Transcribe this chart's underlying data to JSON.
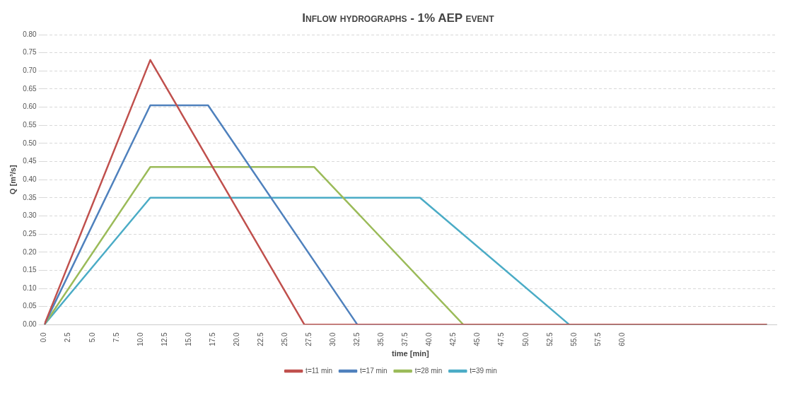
{
  "chart_data": {
    "type": "line",
    "title": "Inflow hydrographs - 1% AEP event",
    "xlabel": "time [min]",
    "ylabel": "Q [m³/s]",
    "series": [
      {
        "name": "t=11 min",
        "color": "#c0504d",
        "x": [
          0,
          11,
          27,
          75
        ],
        "values": [
          0,
          0.73,
          0,
          0
        ]
      },
      {
        "name": "t=17 min",
        "color": "#4f81bd",
        "x": [
          0,
          11,
          17,
          32.5,
          75
        ],
        "values": [
          0,
          0.605,
          0.605,
          0,
          0
        ]
      },
      {
        "name": "t=28 min",
        "color": "#9bbb59",
        "x": [
          0,
          11,
          28,
          43.5,
          75
        ],
        "values": [
          0,
          0.435,
          0.435,
          0,
          0
        ]
      },
      {
        "name": "t=39 min",
        "color": "#4bacc6",
        "x": [
          0,
          11,
          39,
          54.5,
          75
        ],
        "values": [
          0,
          0.35,
          0.35,
          0,
          0
        ]
      }
    ],
    "xlim": [
      0,
      76
    ],
    "xticks": [
      {
        "value": 0,
        "label": "0.0"
      },
      {
        "value": 2.5,
        "label": "2.5"
      },
      {
        "value": 5,
        "label": "5.0"
      },
      {
        "value": 7.5,
        "label": "7.5"
      },
      {
        "value": 10,
        "label": "10.0"
      },
      {
        "value": 12.5,
        "label": "12.5"
      },
      {
        "value": 15,
        "label": "15.0"
      },
      {
        "value": 17.5,
        "label": "17.5"
      },
      {
        "value": 20,
        "label": "20.0"
      },
      {
        "value": 22.5,
        "label": "22.5"
      },
      {
        "value": 25,
        "label": "25.0"
      },
      {
        "value": 27.5,
        "label": "27.5"
      },
      {
        "value": 30,
        "label": "30.0"
      },
      {
        "value": 32.5,
        "label": "32.5"
      },
      {
        "value": 35,
        "label": "35.0"
      },
      {
        "value": 37.5,
        "label": "37.5"
      },
      {
        "value": 40,
        "label": "40.0"
      },
      {
        "value": 42.5,
        "label": "42.5"
      },
      {
        "value": 45,
        "label": "45.0"
      },
      {
        "value": 47.5,
        "label": "47.5"
      },
      {
        "value": 50,
        "label": "50.0"
      },
      {
        "value": 52.5,
        "label": "52.5"
      },
      {
        "value": 55,
        "label": "55.0"
      },
      {
        "value": 57.5,
        "label": "57.5"
      },
      {
        "value": 60,
        "label": "60.0"
      }
    ],
    "ylim": [
      0,
      0.8
    ],
    "yticks": [
      {
        "value": 0,
        "label": "0.00"
      },
      {
        "value": 0.05,
        "label": "0.05"
      },
      {
        "value": 0.1,
        "label": "0.10"
      },
      {
        "value": 0.15,
        "label": "0.15"
      },
      {
        "value": 0.2,
        "label": "0.20"
      },
      {
        "value": 0.25,
        "label": "0.25"
      },
      {
        "value": 0.3,
        "label": "0.30"
      },
      {
        "value": 0.35,
        "label": "0.35"
      },
      {
        "value": 0.4,
        "label": "0.40"
      },
      {
        "value": 0.45,
        "label": "0.45"
      },
      {
        "value": 0.5,
        "label": "0.50"
      },
      {
        "value": 0.55,
        "label": "0.55"
      },
      {
        "value": 0.6,
        "label": "0.60"
      },
      {
        "value": 0.65,
        "label": "0.65"
      },
      {
        "value": 0.7,
        "label": "0.70"
      },
      {
        "value": 0.75,
        "label": "0.75"
      },
      {
        "value": 0.8,
        "label": "0.80"
      }
    ],
    "grid": "y",
    "legend": "bottom",
    "marker": "none",
    "line_style": "solid"
  }
}
